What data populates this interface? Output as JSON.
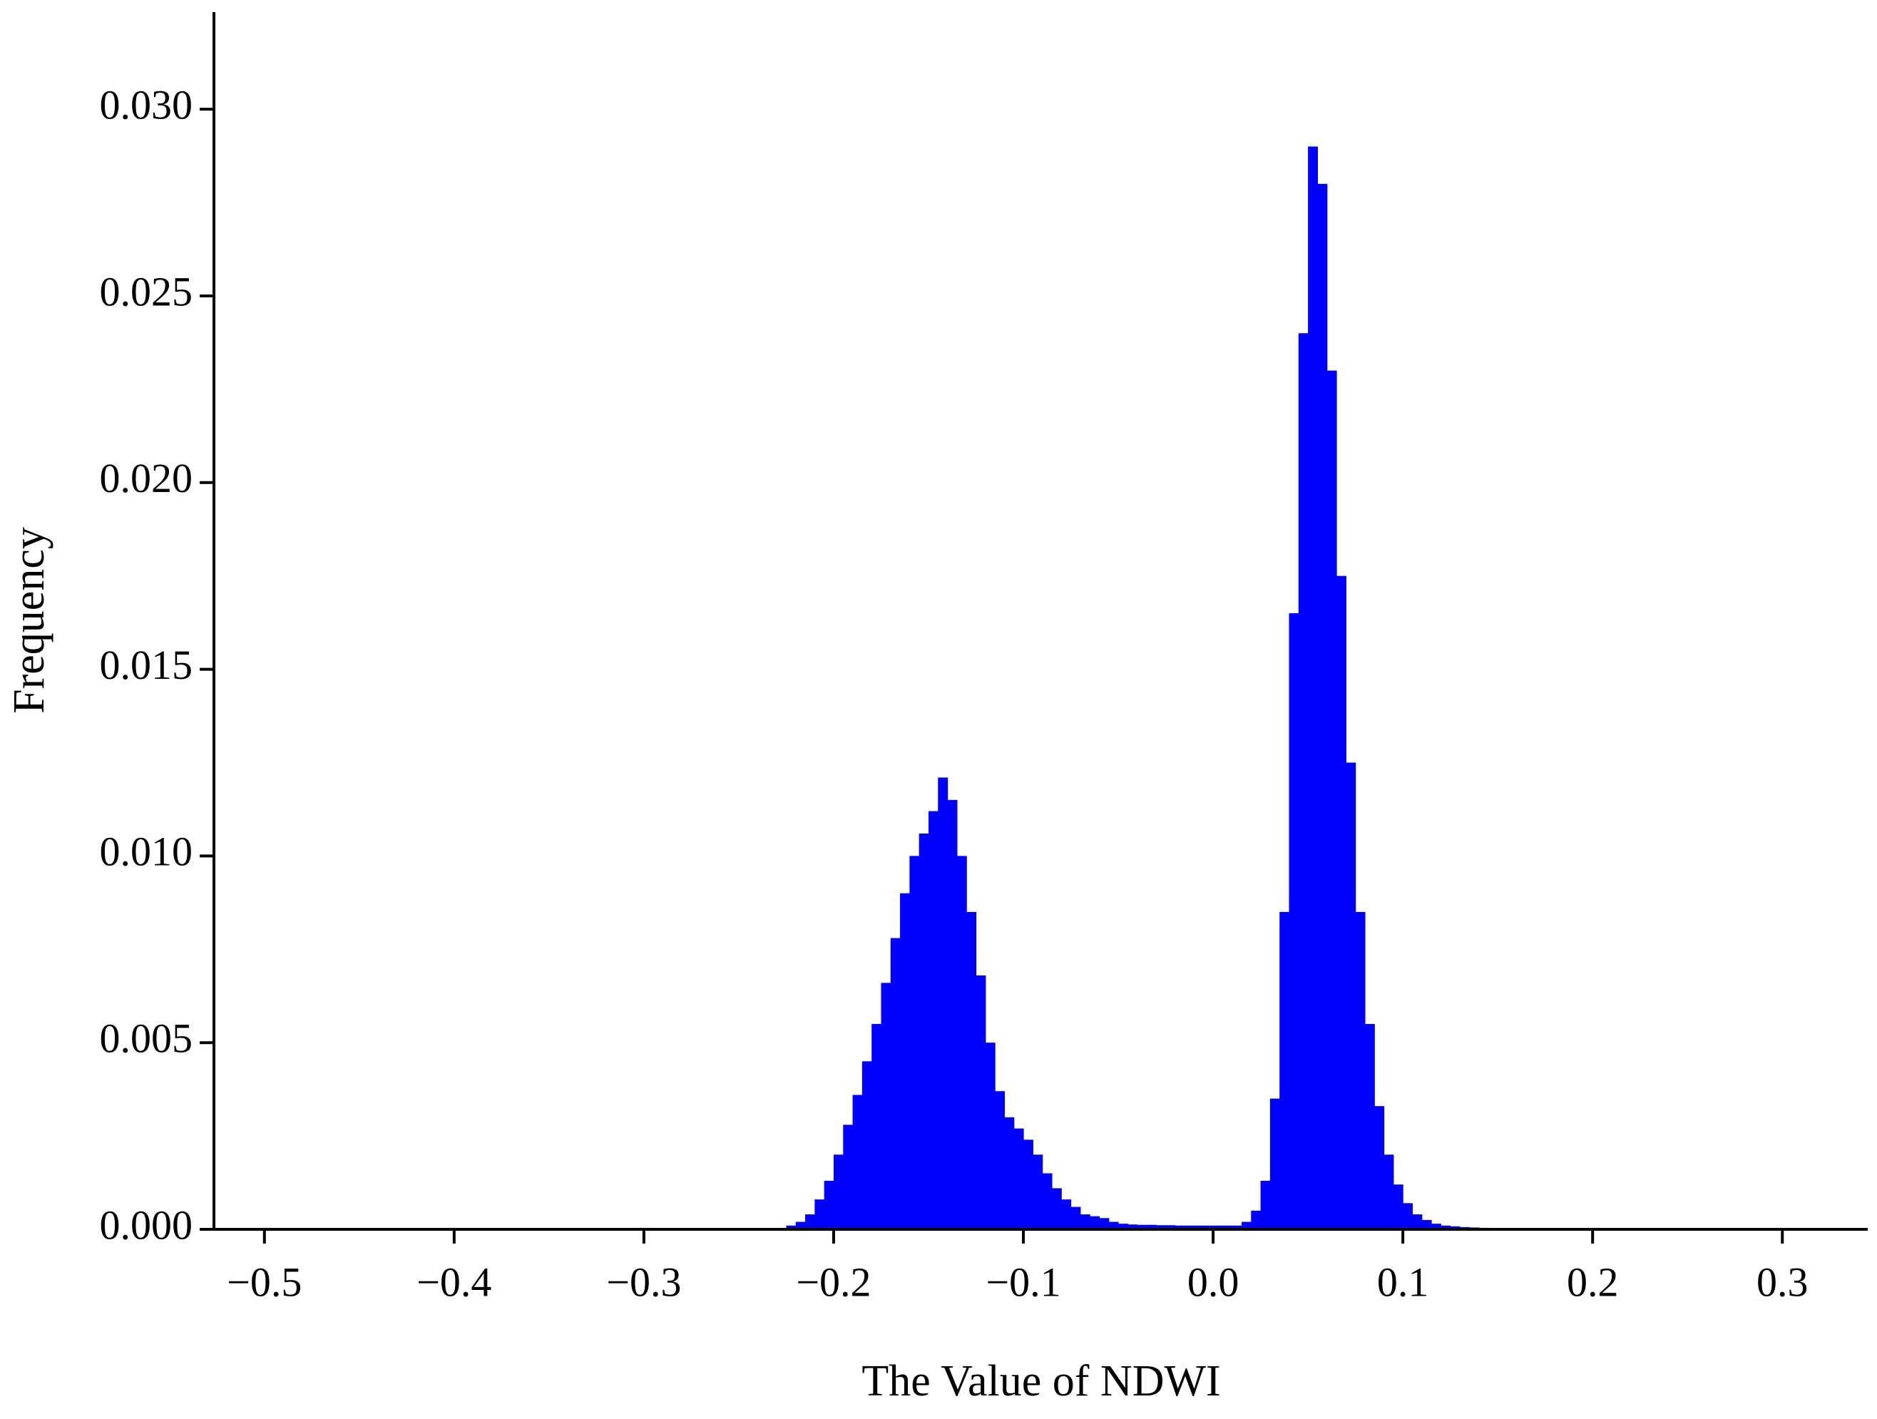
{
  "chart_data": {
    "type": "histogram",
    "xlabel": "The Value of NDWI",
    "ylabel": "Frequency",
    "color": "#0000ff",
    "bins": [
      -0.225,
      -0.22,
      -0.215,
      -0.21,
      -0.205,
      -0.2,
      -0.195,
      -0.19,
      -0.185,
      -0.18,
      -0.175,
      -0.17,
      -0.165,
      -0.16,
      -0.155,
      -0.15,
      -0.145,
      -0.14,
      -0.135,
      -0.13,
      -0.125,
      -0.12,
      -0.115,
      -0.11,
      -0.105,
      -0.1,
      -0.095,
      -0.09,
      -0.085,
      -0.08,
      -0.075,
      -0.07,
      -0.065,
      -0.06,
      -0.055,
      -0.05,
      -0.045,
      -0.04,
      -0.035,
      -0.03,
      -0.025,
      -0.02,
      -0.015,
      -0.01,
      -0.005,
      0,
      0.005,
      0.01,
      0.015,
      0.02,
      0.025,
      0.03,
      0.035,
      0.04,
      0.045,
      0.05,
      0.055,
      0.06,
      0.065,
      0.07,
      0.075,
      0.08,
      0.085,
      0.09,
      0.095,
      0.1,
      0.105,
      0.11,
      0.115,
      0.12,
      0.125,
      0.13,
      0.135,
      0.14,
      0.145,
      0.15,
      0.155
    ],
    "counts": [
      0.0001,
      0.0002,
      0.0004,
      0.0008,
      0.0013,
      0.002,
      0.0028,
      0.0036,
      0.0045,
      0.0055,
      0.0066,
      0.0078,
      0.009,
      0.01,
      0.0106,
      0.0112,
      0.0121,
      0.0115,
      0.01,
      0.0085,
      0.0068,
      0.005,
      0.0037,
      0.003,
      0.0027,
      0.0024,
      0.002,
      0.0015,
      0.0011,
      0.0008,
      0.0006,
      0.0004,
      0.00035,
      0.0003,
      0.0002,
      0.00015,
      0.00013,
      0.00012,
      0.00012,
      0.00011,
      0.00011,
      0.0001,
      0.0001,
      0.0001,
      0.0001,
      0.0001,
      0.0001,
      0.0001,
      0.0002,
      0.0005,
      0.0013,
      0.0035,
      0.0085,
      0.0165,
      0.024,
      0.029,
      0.028,
      0.023,
      0.0175,
      0.0125,
      0.0085,
      0.0055,
      0.0033,
      0.002,
      0.0012,
      0.0007,
      0.0004,
      0.00025,
      0.00015,
      0.0001,
      8e-05,
      6e-05,
      5e-05,
      4e-05,
      3e-05,
      3e-05
    ],
    "xlim": [
      -0.5266,
      0.345
    ],
    "ylim": [
      0,
      0.0326
    ],
    "xticks": [
      {
        "value": -0.5,
        "label": "−0.5"
      },
      {
        "value": -0.4,
        "label": "−0.4"
      },
      {
        "value": -0.3,
        "label": "−0.3"
      },
      {
        "value": -0.2,
        "label": "−0.2"
      },
      {
        "value": -0.1,
        "label": "−0.1"
      },
      {
        "value": 0,
        "label": "0.0"
      },
      {
        "value": 0.1,
        "label": "0.1"
      },
      {
        "value": 0.2,
        "label": "0.2"
      },
      {
        "value": 0.3,
        "label": "0.3"
      }
    ],
    "yticks": [
      {
        "value": 0,
        "label": "0.000"
      },
      {
        "value": 0.005,
        "label": "0.005"
      },
      {
        "value": 0.01,
        "label": "0.010"
      },
      {
        "value": 0.015,
        "label": "0.015"
      },
      {
        "value": 0.02,
        "label": "0.020"
      },
      {
        "value": 0.025,
        "label": "0.025"
      },
      {
        "value": 0.03,
        "label": "0.030"
      }
    ]
  }
}
